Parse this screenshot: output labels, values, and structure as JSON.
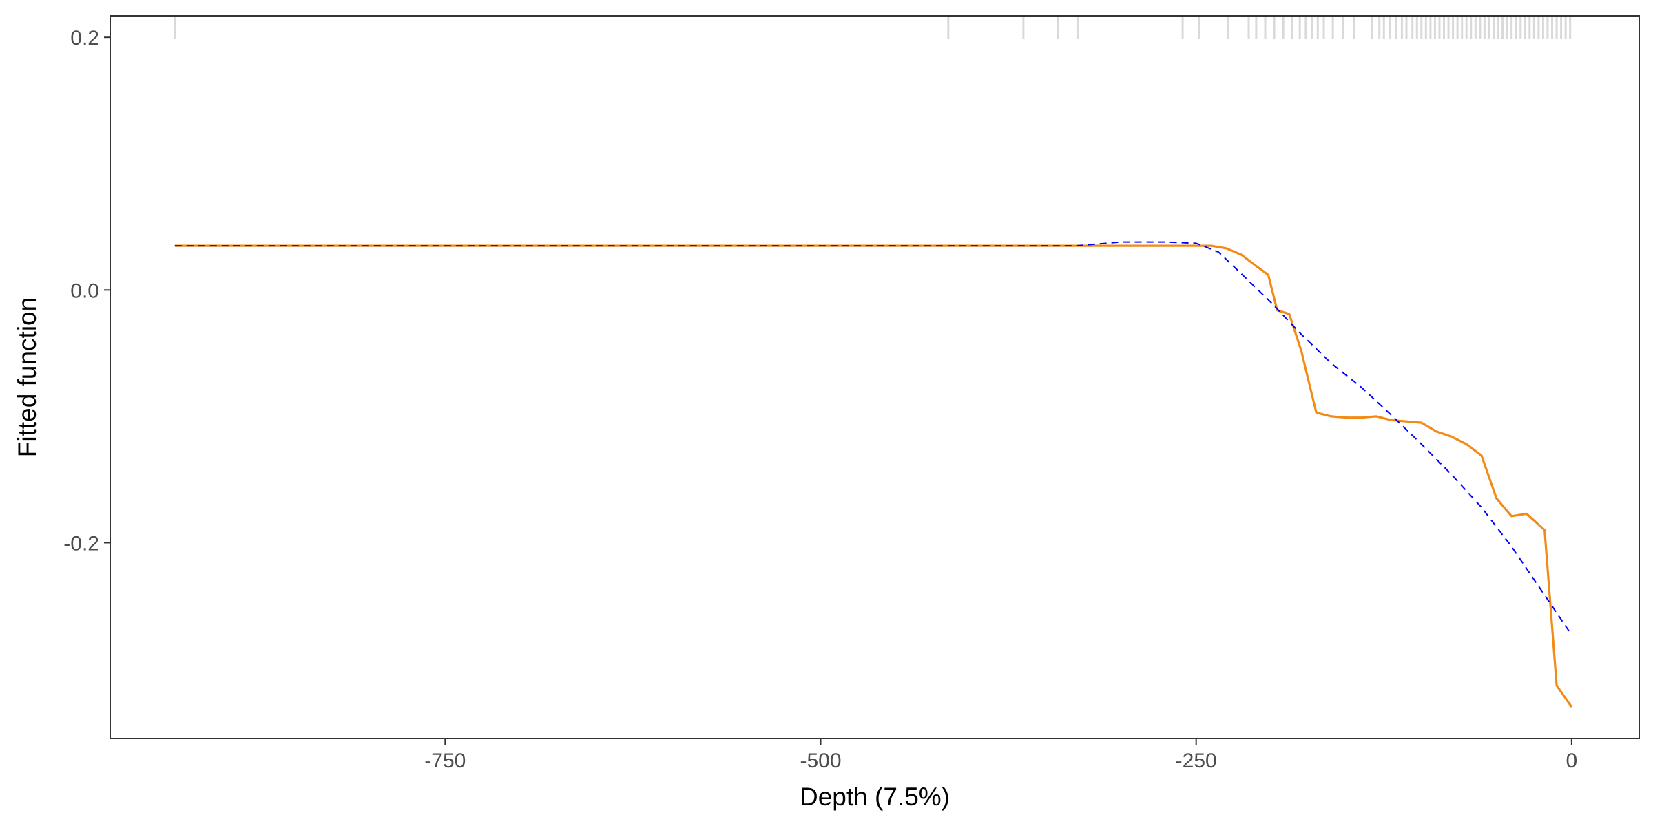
{
  "chart_data": {
    "type": "line",
    "title": "",
    "xlabel": "Depth  (7.5%)",
    "ylabel": "Fitted function",
    "xlim": [
      -973,
      45
    ],
    "ylim": [
      -0.355,
      0.217
    ],
    "x_ticks": [
      {
        "value": -750,
        "label": "-750"
      },
      {
        "value": -500,
        "label": "-500"
      },
      {
        "value": -250,
        "label": "-250"
      },
      {
        "value": 0,
        "label": "0"
      }
    ],
    "y_ticks": [
      {
        "value": 0.2,
        "label": "0.2"
      },
      {
        "value": 0.0,
        "label": "0.0"
      },
      {
        "value": -0.2,
        "label": "-0.2"
      }
    ],
    "grid": false,
    "legend": "none",
    "series": [
      {
        "style": "solid",
        "color": "#F28A16",
        "x": [
          -930,
          -500,
          -250,
          -240,
          -230,
          -220,
          -210,
          -202,
          -196,
          -188,
          -180,
          -170,
          -160,
          -150,
          -140,
          -130,
          -120,
          -110,
          -100,
          -90,
          -80,
          -70,
          -60,
          -50,
          -40,
          -30,
          -18,
          -10,
          0
        ],
        "y": [
          0.035,
          0.035,
          0.035,
          0.035,
          0.033,
          0.028,
          0.019,
          0.012,
          -0.016,
          -0.019,
          -0.048,
          -0.097,
          -0.1,
          -0.101,
          -0.101,
          -0.1,
          -0.103,
          -0.104,
          -0.105,
          -0.112,
          -0.116,
          -0.122,
          -0.131,
          -0.165,
          -0.179,
          -0.177,
          -0.19,
          -0.313,
          -0.33
        ]
      },
      {
        "style": "dashed",
        "color": "#0000FF",
        "x": [
          -930,
          -500,
          -330,
          -300,
          -270,
          -250,
          -235,
          -220,
          -200,
          -180,
          -160,
          -140,
          -120,
          -100,
          -80,
          -60,
          -40,
          -20,
          0
        ],
        "y": [
          0.035,
          0.035,
          0.035,
          0.038,
          0.038,
          0.037,
          0.03,
          0.013,
          -0.01,
          -0.035,
          -0.058,
          -0.077,
          -0.099,
          -0.122,
          -0.146,
          -0.172,
          -0.203,
          -0.238,
          -0.273
        ]
      }
    ],
    "rug": {
      "color": "#D9D9D9",
      "x": [
        -930,
        -415,
        -365,
        -342,
        -329,
        -259,
        -248,
        -229,
        -215,
        -210,
        -204,
        -198,
        -192,
        -186,
        -181,
        -177,
        -173,
        -169,
        -165,
        -159,
        -152,
        -145,
        -133,
        -128,
        -125,
        -121,
        -117,
        -113,
        -110,
        -106,
        -103,
        -100,
        -97,
        -94,
        -91,
        -88,
        -85,
        -82,
        -79,
        -76,
        -73,
        -70,
        -67,
        -64,
        -61,
        -58,
        -55,
        -52,
        -49,
        -46,
        -43,
        -40,
        -37,
        -34,
        -31,
        -28,
        -25,
        -22,
        -19,
        -16,
        -13,
        -10,
        -7,
        -4,
        -1
      ]
    }
  }
}
